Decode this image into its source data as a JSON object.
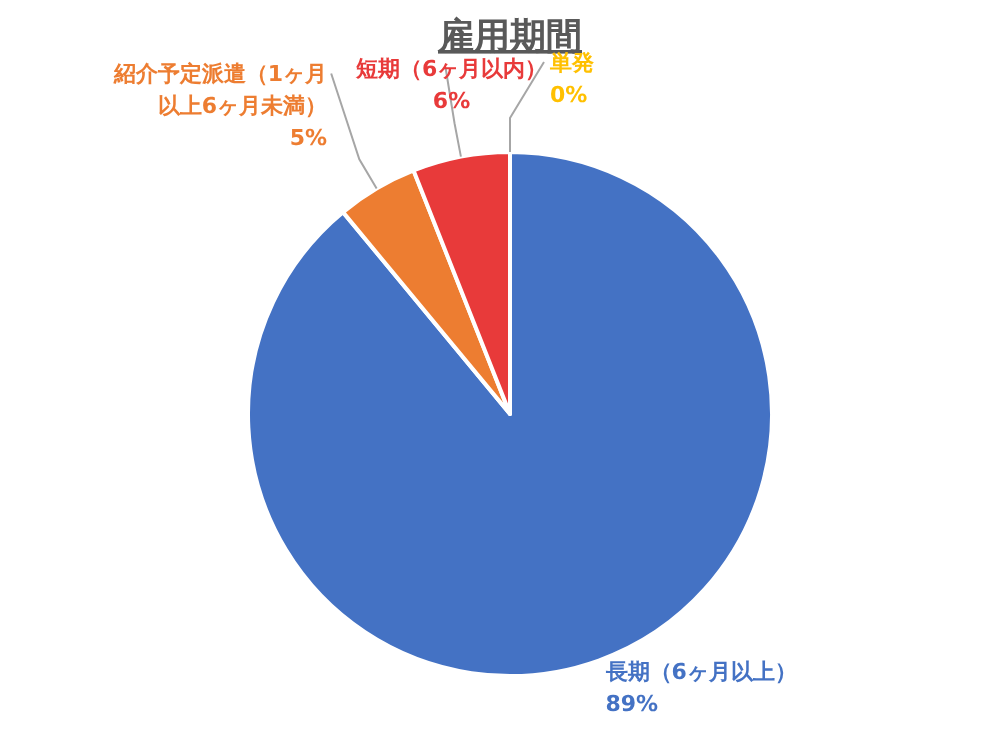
{
  "chart_data": {
    "type": "pie",
    "title": "雇用期間",
    "categories": [
      "長期（6ヶ月以上）",
      "紹介予定派遣（1ヶ月以上6ヶ月未満）",
      "短期（6ヶ月以内）",
      "単発"
    ],
    "values": [
      89,
      5,
      6,
      0
    ],
    "colors": [
      "#4472c4",
      "#ed7d31",
      "#e83a3a",
      "#ffc000"
    ],
    "value_labels": [
      "89%",
      "5%",
      "6%",
      "0%"
    ]
  }
}
